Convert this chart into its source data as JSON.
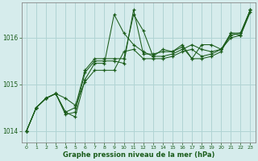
{
  "bg_color": "#d6ecec",
  "grid_color": "#b0d4d4",
  "line_color": "#1a5c1a",
  "marker_color": "#1a5c1a",
  "xlabel": "Graphe pression niveau de la mer (hPa)",
  "xlim": [
    -0.5,
    23.5
  ],
  "ylim": [
    1013.75,
    1016.75
  ],
  "yticks": [
    1014,
    1015,
    1016
  ],
  "xticks": [
    0,
    1,
    2,
    3,
    4,
    5,
    6,
    7,
    8,
    9,
    10,
    11,
    12,
    13,
    14,
    15,
    16,
    17,
    18,
    19,
    20,
    21,
    22,
    23
  ],
  "series": [
    [
      1014.0,
      1014.5,
      1014.7,
      1014.8,
      1014.7,
      1014.55,
      1015.05,
      1015.3,
      1015.3,
      1015.3,
      1015.7,
      1015.75,
      1015.55,
      1015.55,
      1015.55,
      1015.6,
      1015.7,
      1015.75,
      1015.6,
      1015.65,
      1015.75,
      1016.0,
      1016.05,
      1016.55
    ],
    [
      1014.0,
      1014.5,
      1014.7,
      1014.8,
      1014.4,
      1014.3,
      1015.1,
      1015.45,
      1015.45,
      1016.5,
      1016.1,
      1015.85,
      1015.7,
      1015.6,
      1015.6,
      1015.65,
      1015.75,
      1015.85,
      1015.75,
      1015.7,
      1015.75,
      1016.05,
      1016.1,
      1016.6
    ],
    [
      1014.0,
      1014.5,
      1014.7,
      1014.8,
      1014.35,
      1014.4,
      1015.25,
      1015.5,
      1015.5,
      1015.5,
      1015.45,
      1016.6,
      1015.65,
      1015.65,
      1015.7,
      1015.7,
      1015.8,
      1015.55,
      1015.85,
      1015.85,
      1015.75,
      1016.1,
      1016.1,
      1016.6
    ],
    [
      1014.0,
      1014.5,
      1014.7,
      1014.8,
      1014.4,
      1014.5,
      1015.3,
      1015.55,
      1015.55,
      1015.55,
      1015.55,
      1016.5,
      1016.15,
      1015.6,
      1015.75,
      1015.7,
      1015.85,
      1015.55,
      1015.55,
      1015.6,
      1015.7,
      1016.1,
      1016.05,
      1016.6
    ]
  ]
}
